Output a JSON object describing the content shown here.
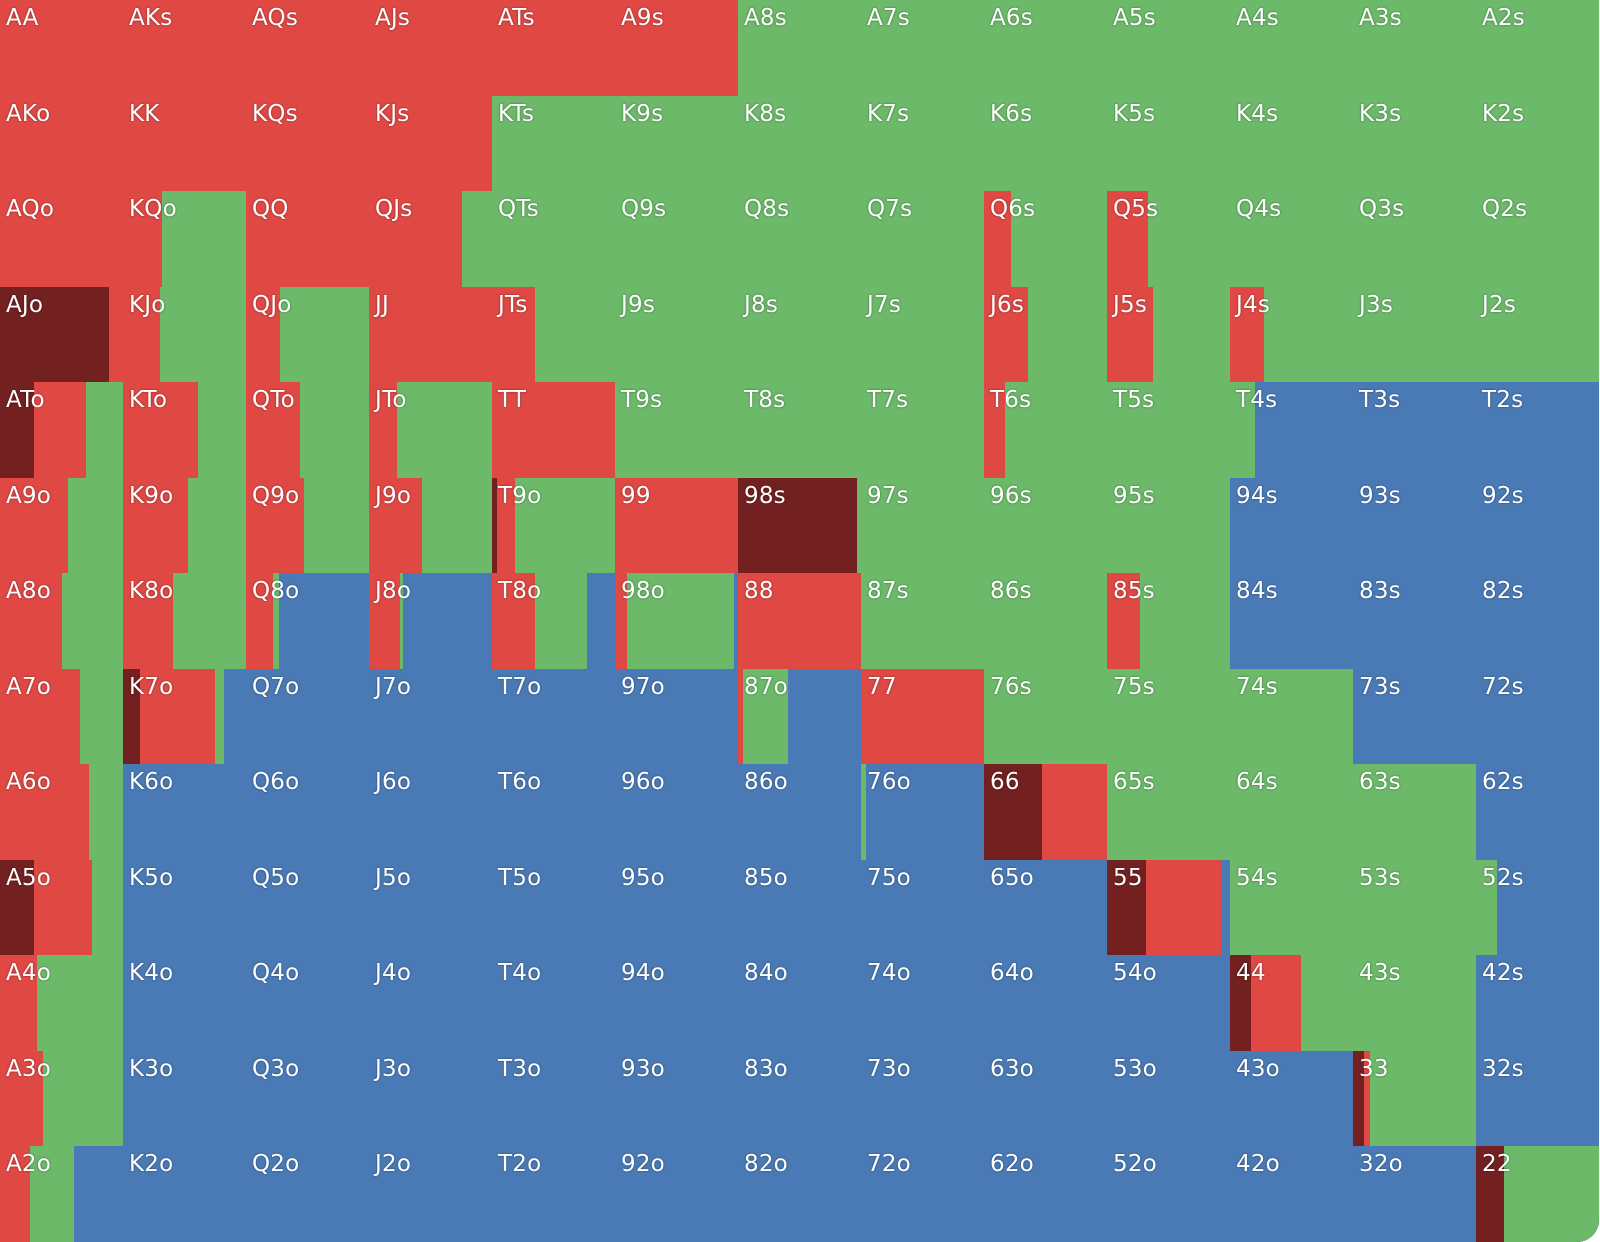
{
  "colors": {
    "raise_big": "#722020",
    "raise": "#e04844",
    "call": "#6cb96a",
    "fold": "#4a7ab5"
  },
  "range": [
    {
      "hand": "AA",
      "freq": {
        "raise": 100
      }
    },
    {
      "hand": "AKs",
      "freq": {
        "raise": 100
      }
    },
    {
      "hand": "AQs",
      "freq": {
        "raise": 100
      }
    },
    {
      "hand": "AJs",
      "freq": {
        "raise": 100
      }
    },
    {
      "hand": "ATs",
      "freq": {
        "raise": 100
      }
    },
    {
      "hand": "A9s",
      "freq": {
        "raise": 100
      }
    },
    {
      "hand": "A8s",
      "freq": {
        "call": 100
      }
    },
    {
      "hand": "A7s",
      "freq": {
        "call": 100
      }
    },
    {
      "hand": "A6s",
      "freq": {
        "call": 100
      }
    },
    {
      "hand": "A5s",
      "freq": {
        "call": 100
      }
    },
    {
      "hand": "A4s",
      "freq": {
        "call": 100
      }
    },
    {
      "hand": "A3s",
      "freq": {
        "call": 100
      }
    },
    {
      "hand": "A2s",
      "freq": {
        "call": 100
      }
    },
    {
      "hand": "AKo",
      "freq": {
        "raise": 100
      }
    },
    {
      "hand": "KK",
      "freq": {
        "raise": 100
      }
    },
    {
      "hand": "KQs",
      "freq": {
        "raise": 100
      }
    },
    {
      "hand": "KJs",
      "freq": {
        "raise": 100
      }
    },
    {
      "hand": "KTs",
      "freq": {
        "call": 100
      }
    },
    {
      "hand": "K9s",
      "freq": {
        "call": 100
      }
    },
    {
      "hand": "K8s",
      "freq": {
        "call": 100
      }
    },
    {
      "hand": "K7s",
      "freq": {
        "call": 100
      }
    },
    {
      "hand": "K6s",
      "freq": {
        "call": 100
      }
    },
    {
      "hand": "K5s",
      "freq": {
        "call": 100
      }
    },
    {
      "hand": "K4s",
      "freq": {
        "call": 100
      }
    },
    {
      "hand": "K3s",
      "freq": {
        "call": 100
      }
    },
    {
      "hand": "K2s",
      "freq": {
        "call": 100
      }
    },
    {
      "hand": "AQo",
      "freq": {
        "raise": 100
      }
    },
    {
      "hand": "KQo",
      "freq": {
        "raise": 32,
        "call": 68
      }
    },
    {
      "hand": "QQ",
      "freq": {
        "raise": 100
      }
    },
    {
      "hand": "QJs",
      "freq": {
        "raise": 76,
        "call": 24
      }
    },
    {
      "hand": "QTs",
      "freq": {
        "call": 100
      }
    },
    {
      "hand": "Q9s",
      "freq": {
        "call": 100
      }
    },
    {
      "hand": "Q8s",
      "freq": {
        "call": 100
      }
    },
    {
      "hand": "Q7s",
      "freq": {
        "call": 100
      }
    },
    {
      "hand": "Q6s",
      "freq": {
        "raise": 22,
        "call": 78
      }
    },
    {
      "hand": "Q5s",
      "freq": {
        "raise": 33,
        "call": 67
      }
    },
    {
      "hand": "Q4s",
      "freq": {
        "call": 100
      }
    },
    {
      "hand": "Q3s",
      "freq": {
        "call": 100
      }
    },
    {
      "hand": "Q2s",
      "freq": {
        "call": 100
      }
    },
    {
      "hand": "AJo",
      "freq": {
        "raise_big": 89,
        "raise": 11
      }
    },
    {
      "hand": "KJo",
      "freq": {
        "raise": 30,
        "call": 70
      }
    },
    {
      "hand": "QJo",
      "freq": {
        "raise": 28,
        "call": 72
      }
    },
    {
      "hand": "JJ",
      "freq": {
        "raise": 100
      }
    },
    {
      "hand": "JTs",
      "freq": {
        "raise": 35,
        "call": 65
      }
    },
    {
      "hand": "J9s",
      "freq": {
        "call": 100
      }
    },
    {
      "hand": "J8s",
      "freq": {
        "call": 100
      }
    },
    {
      "hand": "J7s",
      "freq": {
        "call": 100
      }
    },
    {
      "hand": "J6s",
      "freq": {
        "raise": 36,
        "call": 64
      }
    },
    {
      "hand": "J5s",
      "freq": {
        "raise": 37,
        "call": 63
      }
    },
    {
      "hand": "J4s",
      "freq": {
        "raise": 28,
        "call": 72
      }
    },
    {
      "hand": "J3s",
      "freq": {
        "call": 100
      }
    },
    {
      "hand": "J2s",
      "freq": {
        "call": 100
      }
    },
    {
      "hand": "ATo",
      "freq": {
        "raise_big": 28,
        "raise": 42,
        "call": 30
      }
    },
    {
      "hand": "KTo",
      "freq": {
        "raise": 61,
        "call": 39
      }
    },
    {
      "hand": "QTo",
      "freq": {
        "raise": 44,
        "call": 56
      }
    },
    {
      "hand": "JTo",
      "freq": {
        "raise": 23,
        "call": 77
      }
    },
    {
      "hand": "TT",
      "freq": {
        "raise": 100
      }
    },
    {
      "hand": "T9s",
      "freq": {
        "call": 100
      }
    },
    {
      "hand": "T8s",
      "freq": {
        "call": 100
      }
    },
    {
      "hand": "T7s",
      "freq": {
        "call": 100
      }
    },
    {
      "hand": "T6s",
      "freq": {
        "raise": 17,
        "call": 83
      }
    },
    {
      "hand": "T5s",
      "freq": {
        "call": 100
      }
    },
    {
      "hand": "T4s",
      "freq": {
        "call": 20,
        "fold": 80
      }
    },
    {
      "hand": "T3s",
      "freq": {
        "fold": 100
      }
    },
    {
      "hand": "T2s",
      "freq": {
        "fold": 100
      }
    },
    {
      "hand": "A9o",
      "freq": {
        "raise": 55,
        "call": 45
      }
    },
    {
      "hand": "K9o",
      "freq": {
        "raise": 53,
        "call": 47
      }
    },
    {
      "hand": "Q9o",
      "freq": {
        "raise": 47,
        "call": 53
      }
    },
    {
      "hand": "J9o",
      "freq": {
        "raise": 43,
        "call": 57
      }
    },
    {
      "hand": "T9o",
      "freq": {
        "raise_big": 4,
        "raise": 15,
        "call": 81
      }
    },
    {
      "hand": "99",
      "freq": {
        "raise": 100
      }
    },
    {
      "hand": "98s",
      "freq": {
        "raise_big": 97,
        "call": 3
      }
    },
    {
      "hand": "97s",
      "freq": {
        "call": 100
      }
    },
    {
      "hand": "96s",
      "freq": {
        "call": 100
      }
    },
    {
      "hand": "95s",
      "freq": {
        "call": 100
      }
    },
    {
      "hand": "94s",
      "freq": {
        "fold": 100
      }
    },
    {
      "hand": "93s",
      "freq": {
        "fold": 100
      }
    },
    {
      "hand": "92s",
      "freq": {
        "fold": 100
      }
    },
    {
      "hand": "A8o",
      "freq": {
        "raise": 50,
        "call": 50
      }
    },
    {
      "hand": "K8o",
      "freq": {
        "raise": 41,
        "call": 59
      }
    },
    {
      "hand": "Q8o",
      "freq": {
        "raise": 22,
        "call": 5,
        "fold": 73
      }
    },
    {
      "hand": "J8o",
      "freq": {
        "raise": 25,
        "call": 3,
        "fold": 72
      }
    },
    {
      "hand": "T8o",
      "freq": {
        "raise": 35,
        "call": 42,
        "fold": 23
      }
    },
    {
      "hand": "98o",
      "freq": {
        "raise": 10,
        "call": 87,
        "fold": 3
      }
    },
    {
      "hand": "88",
      "freq": {
        "raise": 100
      }
    },
    {
      "hand": "87s",
      "freq": {
        "call": 100
      }
    },
    {
      "hand": "86s",
      "freq": {
        "call": 100
      }
    },
    {
      "hand": "85s",
      "freq": {
        "raise": 27,
        "call": 73
      }
    },
    {
      "hand": "84s",
      "freq": {
        "fold": 100
      }
    },
    {
      "hand": "83s",
      "freq": {
        "fold": 100
      }
    },
    {
      "hand": "82s",
      "freq": {
        "fold": 100
      }
    },
    {
      "hand": "A7o",
      "freq": {
        "raise": 65,
        "call": 35
      }
    },
    {
      "hand": "K7o",
      "freq": {
        "raise_big": 14,
        "raise": 61,
        "call": 7,
        "fold": 18
      }
    },
    {
      "hand": "Q7o",
      "freq": {
        "fold": 100
      }
    },
    {
      "hand": "J7o",
      "freq": {
        "fold": 100
      }
    },
    {
      "hand": "T7o",
      "freq": {
        "fold": 100
      }
    },
    {
      "hand": "97o",
      "freq": {
        "fold": 100
      }
    },
    {
      "hand": "87o",
      "freq": {
        "raise": 4,
        "call": 37,
        "fold": 59
      }
    },
    {
      "hand": "77",
      "freq": {
        "raise": 100
      }
    },
    {
      "hand": "76s",
      "freq": {
        "call": 100
      }
    },
    {
      "hand": "75s",
      "freq": {
        "call": 100
      }
    },
    {
      "hand": "74s",
      "freq": {
        "call": 100
      }
    },
    {
      "hand": "73s",
      "freq": {
        "fold": 100
      }
    },
    {
      "hand": "72s",
      "freq": {
        "fold": 100
      }
    },
    {
      "hand": "A6o",
      "freq": {
        "raise": 72,
        "call": 28
      }
    },
    {
      "hand": "K6o",
      "freq": {
        "fold": 100
      }
    },
    {
      "hand": "Q6o",
      "freq": {
        "fold": 100
      }
    },
    {
      "hand": "J6o",
      "freq": {
        "fold": 100
      }
    },
    {
      "hand": "T6o",
      "freq": {
        "fold": 100
      }
    },
    {
      "hand": "96o",
      "freq": {
        "fold": 100
      }
    },
    {
      "hand": "86o",
      "freq": {
        "fold": 100
      }
    },
    {
      "hand": "76o",
      "freq": {
        "call": 4,
        "fold": 96
      }
    },
    {
      "hand": "66",
      "freq": {
        "raise_big": 47,
        "raise": 53
      }
    },
    {
      "hand": "65s",
      "freq": {
        "call": 100
      }
    },
    {
      "hand": "64s",
      "freq": {
        "call": 100
      }
    },
    {
      "hand": "63s",
      "freq": {
        "call": 100
      }
    },
    {
      "hand": "62s",
      "freq": {
        "fold": 100
      }
    },
    {
      "hand": "A5o",
      "freq": {
        "raise_big": 28,
        "raise": 47,
        "call": 25
      }
    },
    {
      "hand": "K5o",
      "freq": {
        "fold": 100
      }
    },
    {
      "hand": "Q5o",
      "freq": {
        "fold": 100
      }
    },
    {
      "hand": "J5o",
      "freq": {
        "fold": 100
      }
    },
    {
      "hand": "T5o",
      "freq": {
        "fold": 100
      }
    },
    {
      "hand": "95o",
      "freq": {
        "fold": 100
      }
    },
    {
      "hand": "85o",
      "freq": {
        "fold": 100
      }
    },
    {
      "hand": "75o",
      "freq": {
        "fold": 100
      }
    },
    {
      "hand": "65o",
      "freq": {
        "fold": 100
      }
    },
    {
      "hand": "55",
      "freq": {
        "raise_big": 32,
        "raise": 61,
        "fold": 7
      }
    },
    {
      "hand": "54s",
      "freq": {
        "call": 100
      }
    },
    {
      "hand": "53s",
      "freq": {
        "call": 100
      }
    },
    {
      "hand": "52s",
      "freq": {
        "call": 17,
        "fold": 83
      }
    },
    {
      "hand": "A4o",
      "freq": {
        "raise": 30,
        "call": 70
      }
    },
    {
      "hand": "K4o",
      "freq": {
        "fold": 100
      }
    },
    {
      "hand": "Q4o",
      "freq": {
        "fold": 100
      }
    },
    {
      "hand": "J4o",
      "freq": {
        "fold": 100
      }
    },
    {
      "hand": "T4o",
      "freq": {
        "fold": 100
      }
    },
    {
      "hand": "94o",
      "freq": {
        "fold": 100
      }
    },
    {
      "hand": "84o",
      "freq": {
        "fold": 100
      }
    },
    {
      "hand": "74o",
      "freq": {
        "fold": 100
      }
    },
    {
      "hand": "64o",
      "freq": {
        "fold": 100
      }
    },
    {
      "hand": "54o",
      "freq": {
        "fold": 100
      }
    },
    {
      "hand": "44",
      "freq": {
        "raise_big": 17,
        "raise": 41,
        "call": 42
      }
    },
    {
      "hand": "43s",
      "freq": {
        "call": 100
      }
    },
    {
      "hand": "42s",
      "freq": {
        "fold": 100
      }
    },
    {
      "hand": "A3o",
      "freq": {
        "raise": 35,
        "call": 65
      }
    },
    {
      "hand": "K3o",
      "freq": {
        "fold": 100
      }
    },
    {
      "hand": "Q3o",
      "freq": {
        "fold": 100
      }
    },
    {
      "hand": "J3o",
      "freq": {
        "fold": 100
      }
    },
    {
      "hand": "T3o",
      "freq": {
        "fold": 100
      }
    },
    {
      "hand": "93o",
      "freq": {
        "fold": 100
      }
    },
    {
      "hand": "83o",
      "freq": {
        "fold": 100
      }
    },
    {
      "hand": "73o",
      "freq": {
        "fold": 100
      }
    },
    {
      "hand": "63o",
      "freq": {
        "fold": 100
      }
    },
    {
      "hand": "53o",
      "freq": {
        "fold": 100
      }
    },
    {
      "hand": "43o",
      "freq": {
        "fold": 100
      }
    },
    {
      "hand": "33",
      "freq": {
        "raise_big": 9,
        "raise": 5,
        "call": 86
      }
    },
    {
      "hand": "32s",
      "freq": {
        "fold": 100
      }
    },
    {
      "hand": "A2o",
      "freq": {
        "raise": 24,
        "call": 36,
        "fold": 40
      }
    },
    {
      "hand": "K2o",
      "freq": {
        "fold": 100
      }
    },
    {
      "hand": "Q2o",
      "freq": {
        "fold": 100
      }
    },
    {
      "hand": "J2o",
      "freq": {
        "fold": 100
      }
    },
    {
      "hand": "T2o",
      "freq": {
        "fold": 100
      }
    },
    {
      "hand": "92o",
      "freq": {
        "fold": 100
      }
    },
    {
      "hand": "82o",
      "freq": {
        "fold": 100
      }
    },
    {
      "hand": "72o",
      "freq": {
        "fold": 100
      }
    },
    {
      "hand": "62o",
      "freq": {
        "fold": 100
      }
    },
    {
      "hand": "52o",
      "freq": {
        "fold": 100
      }
    },
    {
      "hand": "42o",
      "freq": {
        "fold": 100
      }
    },
    {
      "hand": "32o",
      "freq": {
        "fold": 100
      }
    },
    {
      "hand": "22",
      "freq": {
        "raise_big": 23,
        "call": 77
      }
    }
  ]
}
